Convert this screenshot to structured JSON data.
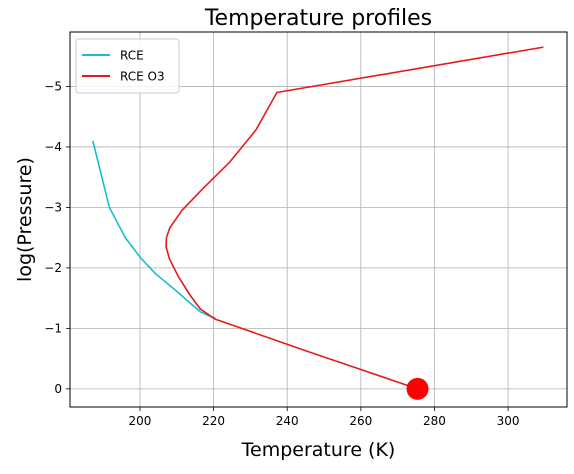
{
  "chart_data": {
    "type": "line",
    "title": "Temperature profiles",
    "xlabel": "Temperature (K)",
    "ylabel": "log(Pressure)",
    "xlim": [
      181.0,
      316.0
    ],
    "ylim": [
      0.3,
      -5.9
    ],
    "x_ticks": [
      200,
      220,
      240,
      260,
      280,
      300
    ],
    "x_tick_labels": [
      "200",
      "220",
      "240",
      "260",
      "280",
      "300"
    ],
    "y_ticks": [
      0,
      -1,
      -2,
      -3,
      -4,
      -5
    ],
    "y_tick_labels": [
      "0",
      "−1",
      "−2",
      "−3",
      "−4",
      "−5"
    ],
    "grid": true,
    "legend_position": "top-left",
    "series": [
      {
        "name": "RCE",
        "color": "#17becf",
        "x": [
          187.2,
          191.7,
          196.0,
          200.4,
          204.3,
          209.1,
          213.6,
          216.5,
          219.4,
          220.5
        ],
        "y": [
          -4.1,
          -3.0,
          -2.5,
          -2.15,
          -1.9,
          -1.66,
          -1.42,
          -1.27,
          -1.19,
          -1.17
        ]
      },
      {
        "name": "RCE O3",
        "color": "#e41a1c",
        "x": [
          309.6,
          237.2,
          231.5,
          224.4,
          216.9,
          211.4,
          208.1,
          207.2,
          207.1,
          208.0,
          210.5,
          213.6,
          216.4,
          220.5,
          230.0,
          245.0,
          260.0,
          275.4
        ],
        "y": [
          -5.65,
          -4.9,
          -4.28,
          -3.75,
          -3.3,
          -2.95,
          -2.66,
          -2.5,
          -2.35,
          -2.15,
          -1.85,
          -1.55,
          -1.32,
          -1.15,
          -0.95,
          -0.63,
          -0.32,
          0.0
        ]
      }
    ],
    "markers": [
      {
        "x": 275.4,
        "y": 0.0,
        "color": "#ff0000"
      }
    ]
  }
}
